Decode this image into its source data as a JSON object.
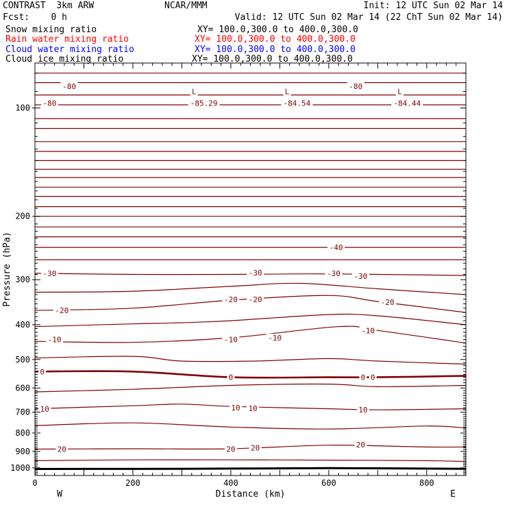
{
  "header": {
    "title": "CONTRAST  3km ARW",
    "center": "NCAR/MMM",
    "init": "Init: 12 UTC Sun 02 Mar 14",
    "fcst": "Fcst:    0 h",
    "valid": "Valid: 12 UTC Sun 02 Mar 14 (22 ChT Sun 02 Mar 14)"
  },
  "fields": [
    {
      "name": "Snow mixing ratio",
      "xy": "XY= 100.0,300.0 to 400.0,300.0",
      "color": "#000000"
    },
    {
      "name": "Rain water mixing ratio",
      "xy": "XY= 100.0,300.0 to 400.0,300.0",
      "color": "#ff0000"
    },
    {
      "name": "Cloud water mixing ratio",
      "xy": "XY= 100.0,300.0 to 400.0,300.0",
      "color": "#0000ff"
    },
    {
      "name": "Cloud ice mixing ratio",
      "xy": "XY= 100.0,300.0 to 400.0,300.0",
      "color": "#000000"
    }
  ],
  "chart_data": {
    "type": "line",
    "subtype": "vertical cross-section contour",
    "xlabel": "Distance (km)",
    "ylabel": "Pressure (hPa)",
    "xlim": [
      0,
      880
    ],
    "ylim": [
      1050,
      75
    ],
    "y_scale": "log-pressure",
    "xticks": [
      0,
      200,
      400,
      600,
      800
    ],
    "yticks": [
      100,
      200,
      300,
      400,
      500,
      600,
      700,
      800,
      900,
      1000
    ],
    "x_end_labels": {
      "left": "W",
      "right": "E"
    },
    "grid": false,
    "contour_color": "#800000",
    "terrain_color": "#000000",
    "terrain": {
      "x": [
        0,
        300,
        600,
        880
      ],
      "p": [
        1007,
        1006,
        1002,
        1006
      ]
    },
    "contours": [
      {
        "x": [
          0,
          880
        ],
        "p": [
          80,
          80
        ]
      },
      {
        "x": [
          0,
          880
        ],
        "p": [
          85,
          85
        ]
      },
      {
        "x": [
          0,
          880
        ],
        "p": [
          92,
          92
        ]
      },
      {
        "x": [
          0,
          880
        ],
        "p": [
          98,
          98
        ]
      },
      {
        "x": [
          0,
          880
        ],
        "p": [
          107,
          107
        ]
      },
      {
        "x": [
          0,
          880
        ],
        "p": [
          114,
          114
        ]
      },
      {
        "x": [
          0,
          880
        ],
        "p": [
          124,
          124
        ]
      },
      {
        "x": [
          0,
          880
        ],
        "p": [
          132,
          132
        ]
      },
      {
        "x": [
          0,
          880
        ],
        "p": [
          140,
          140
        ]
      },
      {
        "x": [
          0,
          880
        ],
        "p": [
          148,
          148
        ]
      },
      {
        "x": [
          0,
          880
        ],
        "p": [
          156,
          156
        ]
      },
      {
        "x": [
          0,
          880
        ],
        "p": [
          166,
          166
        ]
      },
      {
        "x": [
          0,
          880
        ],
        "p": [
          176,
          176
        ]
      },
      {
        "x": [
          0,
          880
        ],
        "p": [
          188,
          188
        ]
      },
      {
        "x": [
          0,
          880
        ],
        "p": [
          200,
          200
        ]
      },
      {
        "x": [
          0,
          880
        ],
        "p": [
          214,
          214
        ]
      },
      {
        "x": [
          0,
          880
        ],
        "p": [
          228,
          228
        ]
      },
      {
        "x": [
          0,
          880
        ],
        "p": [
          244,
          244
        ]
      },
      {
        "x": [
          0,
          880
        ],
        "p": [
          264,
          264
        ]
      },
      {
        "x": [
          0,
          200,
          400,
          560,
          700,
          880
        ],
        "p": [
          288,
          290,
          290,
          289,
          290,
          292
        ]
      },
      {
        "x": [
          0,
          200,
          400,
          540,
          700,
          880
        ],
        "p": [
          325,
          323,
          313,
          307,
          318,
          330
        ]
      },
      {
        "x": [
          0,
          200,
          400,
          600,
          700,
          880
        ],
        "p": [
          365,
          360,
          342,
          332,
          345,
          370
        ]
      },
      {
        "x": [
          0,
          200,
          300,
          400,
          600,
          700,
          880
        ],
        "p": [
          405,
          398,
          395,
          390,
          375,
          378,
          400
        ]
      },
      {
        "x": [
          0,
          200,
          400,
          620,
          700,
          880
        ],
        "p": [
          445,
          448,
          435,
          405,
          415,
          450
        ]
      },
      {
        "x": [
          0,
          200,
          300,
          450,
          600,
          700,
          880
        ],
        "p": [
          495,
          490,
          505,
          505,
          497,
          505,
          515
        ]
      },
      {
        "x": [
          0,
          200,
          400,
          600,
          700,
          880
        ],
        "p": [
          540,
          540,
          560,
          560,
          560,
          555
        ]
      },
      {
        "x": [
          0,
          200,
          400,
          600,
          700,
          880
        ],
        "p": [
          615,
          605,
          590,
          585,
          595,
          590
        ]
      },
      {
        "x": [
          0,
          200,
          300,
          400,
          600,
          700,
          880
        ],
        "p": [
          685,
          672,
          665,
          675,
          685,
          690,
          685
        ]
      },
      {
        "x": [
          0,
          200,
          400,
          600,
          800,
          880
        ],
        "p": [
          763,
          750,
          770,
          780,
          765,
          775
        ]
      },
      {
        "x": [
          0,
          200,
          400,
          600,
          800,
          880
        ],
        "p": [
          887,
          885,
          885,
          865,
          875,
          875
        ]
      },
      {
        "x": [
          0,
          200,
          400,
          600,
          800,
          880
        ],
        "p": [
          955,
          950,
          950,
          952,
          955,
          960
        ]
      }
    ],
    "bold_contours": [
      {
        "x": [
          0,
          200,
          400,
          600,
          700,
          880
        ],
        "p": [
          540,
          540,
          560,
          560,
          560,
          555
        ]
      }
    ],
    "contour_labels": [
      {
        "text": "-80",
        "x": 70,
        "p": 87
      },
      {
        "text": "-80",
        "x": 30,
        "p": 97
      },
      {
        "text": "-80",
        "x": 655,
        "p": 87
      },
      {
        "text": "L",
        "x": 325,
        "p": 90
      },
      {
        "text": "-85.29",
        "x": 345,
        "p": 97
      },
      {
        "text": "L",
        "x": 515,
        "p": 90
      },
      {
        "text": "-84.54",
        "x": 535,
        "p": 97
      },
      {
        "text": "L",
        "x": 745,
        "p": 90
      },
      {
        "text": "-84.44",
        "x": 760,
        "p": 97
      },
      {
        "text": "-40",
        "x": 615,
        "p": 244
      },
      {
        "text": "-30",
        "x": 30,
        "p": 288
      },
      {
        "text": "-30",
        "x": 450,
        "p": 287
      },
      {
        "text": "-30",
        "x": 610,
        "p": 288
      },
      {
        "text": "-30",
        "x": 665,
        "p": 293
      },
      {
        "text": "-20",
        "x": 400,
        "p": 340
      },
      {
        "text": "-20",
        "x": 450,
        "p": 340
      },
      {
        "text": "-20",
        "x": 720,
        "p": 346
      },
      {
        "text": "-20",
        "x": 55,
        "p": 365
      },
      {
        "text": "-10",
        "x": 40,
        "p": 440
      },
      {
        "text": "-10",
        "x": 400,
        "p": 440
      },
      {
        "text": "-10",
        "x": 490,
        "p": 435
      },
      {
        "text": "-10",
        "x": 680,
        "p": 415
      },
      {
        "text": "0",
        "x": 15,
        "p": 540
      },
      {
        "text": "0",
        "x": 400,
        "p": 560
      },
      {
        "text": "0",
        "x": 670,
        "p": 560
      },
      {
        "text": "0",
        "x": 690,
        "p": 560
      },
      {
        "text": "10",
        "x": 20,
        "p": 686
      },
      {
        "text": "10",
        "x": 410,
        "p": 680
      },
      {
        "text": "10",
        "x": 445,
        "p": 683
      },
      {
        "text": "10",
        "x": 670,
        "p": 690
      },
      {
        "text": "20",
        "x": 55,
        "p": 887
      },
      {
        "text": "20",
        "x": 400,
        "p": 887
      },
      {
        "text": "20",
        "x": 450,
        "p": 880
      },
      {
        "text": "20",
        "x": 665,
        "p": 862
      }
    ]
  }
}
